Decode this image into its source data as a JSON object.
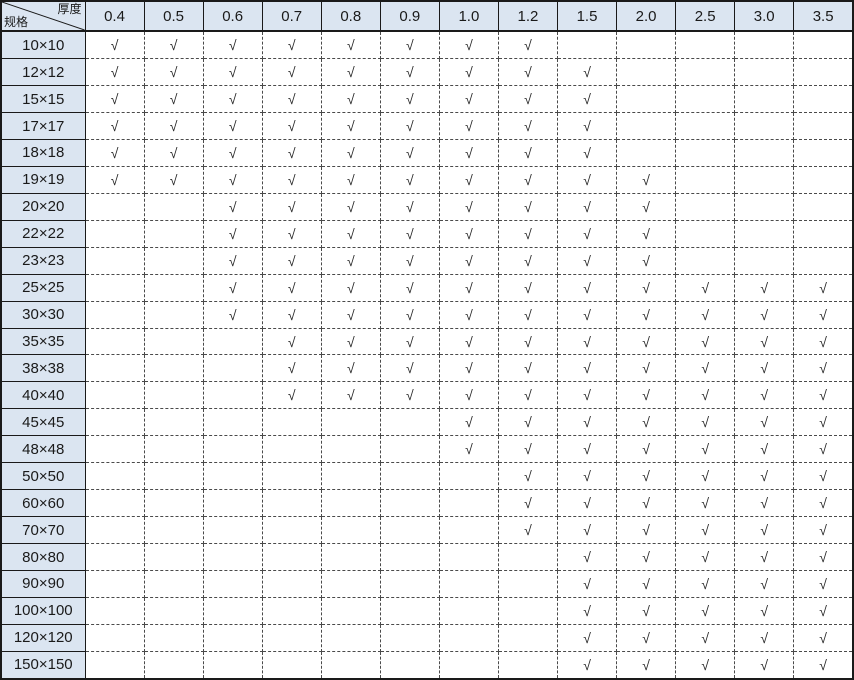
{
  "table": {
    "corner": {
      "top_right_label": "厚度",
      "bottom_left_label": "规格"
    },
    "check_symbol": "√",
    "columns": [
      "0.4",
      "0.5",
      "0.6",
      "0.7",
      "0.8",
      "0.9",
      "1.0",
      "1.2",
      "1.5",
      "2.0",
      "2.5",
      "3.0",
      "3.5"
    ],
    "rows": [
      {
        "spec": "10×10",
        "checks": [
          1,
          1,
          1,
          1,
          1,
          1,
          1,
          1,
          0,
          0,
          0,
          0,
          0
        ]
      },
      {
        "spec": "12×12",
        "checks": [
          1,
          1,
          1,
          1,
          1,
          1,
          1,
          1,
          1,
          0,
          0,
          0,
          0
        ]
      },
      {
        "spec": "15×15",
        "checks": [
          1,
          1,
          1,
          1,
          1,
          1,
          1,
          1,
          1,
          0,
          0,
          0,
          0
        ]
      },
      {
        "spec": "17×17",
        "checks": [
          1,
          1,
          1,
          1,
          1,
          1,
          1,
          1,
          1,
          0,
          0,
          0,
          0
        ]
      },
      {
        "spec": "18×18",
        "checks": [
          1,
          1,
          1,
          1,
          1,
          1,
          1,
          1,
          1,
          0,
          0,
          0,
          0
        ]
      },
      {
        "spec": "19×19",
        "checks": [
          1,
          1,
          1,
          1,
          1,
          1,
          1,
          1,
          1,
          1,
          0,
          0,
          0
        ]
      },
      {
        "spec": "20×20",
        "checks": [
          0,
          0,
          1,
          1,
          1,
          1,
          1,
          1,
          1,
          1,
          0,
          0,
          0
        ]
      },
      {
        "spec": "22×22",
        "checks": [
          0,
          0,
          1,
          1,
          1,
          1,
          1,
          1,
          1,
          1,
          0,
          0,
          0
        ]
      },
      {
        "spec": "23×23",
        "checks": [
          0,
          0,
          1,
          1,
          1,
          1,
          1,
          1,
          1,
          1,
          0,
          0,
          0
        ]
      },
      {
        "spec": "25×25",
        "checks": [
          0,
          0,
          1,
          1,
          1,
          1,
          1,
          1,
          1,
          1,
          1,
          1,
          1
        ]
      },
      {
        "spec": "30×30",
        "checks": [
          0,
          0,
          1,
          1,
          1,
          1,
          1,
          1,
          1,
          1,
          1,
          1,
          1
        ]
      },
      {
        "spec": "35×35",
        "checks": [
          0,
          0,
          0,
          1,
          1,
          1,
          1,
          1,
          1,
          1,
          1,
          1,
          1
        ]
      },
      {
        "spec": "38×38",
        "checks": [
          0,
          0,
          0,
          1,
          1,
          1,
          1,
          1,
          1,
          1,
          1,
          1,
          1
        ]
      },
      {
        "spec": "40×40",
        "checks": [
          0,
          0,
          0,
          1,
          1,
          1,
          1,
          1,
          1,
          1,
          1,
          1,
          1
        ]
      },
      {
        "spec": "45×45",
        "checks": [
          0,
          0,
          0,
          0,
          0,
          0,
          1,
          1,
          1,
          1,
          1,
          1,
          1
        ]
      },
      {
        "spec": "48×48",
        "checks": [
          0,
          0,
          0,
          0,
          0,
          0,
          1,
          1,
          1,
          1,
          1,
          1,
          1
        ]
      },
      {
        "spec": "50×50",
        "checks": [
          0,
          0,
          0,
          0,
          0,
          0,
          0,
          1,
          1,
          1,
          1,
          1,
          1
        ]
      },
      {
        "spec": "60×60",
        "checks": [
          0,
          0,
          0,
          0,
          0,
          0,
          0,
          1,
          1,
          1,
          1,
          1,
          1
        ]
      },
      {
        "spec": "70×70",
        "checks": [
          0,
          0,
          0,
          0,
          0,
          0,
          0,
          1,
          1,
          1,
          1,
          1,
          1
        ]
      },
      {
        "spec": "80×80",
        "checks": [
          0,
          0,
          0,
          0,
          0,
          0,
          0,
          0,
          1,
          1,
          1,
          1,
          1
        ]
      },
      {
        "spec": "90×90",
        "checks": [
          0,
          0,
          0,
          0,
          0,
          0,
          0,
          0,
          1,
          1,
          1,
          1,
          1
        ]
      },
      {
        "spec": "100×100",
        "checks": [
          0,
          0,
          0,
          0,
          0,
          0,
          0,
          0,
          1,
          1,
          1,
          1,
          1
        ]
      },
      {
        "spec": "120×120",
        "checks": [
          0,
          0,
          0,
          0,
          0,
          0,
          0,
          0,
          1,
          1,
          1,
          1,
          1
        ]
      },
      {
        "spec": "150×150",
        "checks": [
          0,
          0,
          0,
          0,
          0,
          0,
          0,
          0,
          1,
          1,
          1,
          1,
          1
        ]
      }
    ],
    "colors": {
      "header_bg": "#dbe5f1",
      "solid_border": "#1a1a1a",
      "dashed_border": "#4a4a4a",
      "check_color": "#262626"
    }
  }
}
